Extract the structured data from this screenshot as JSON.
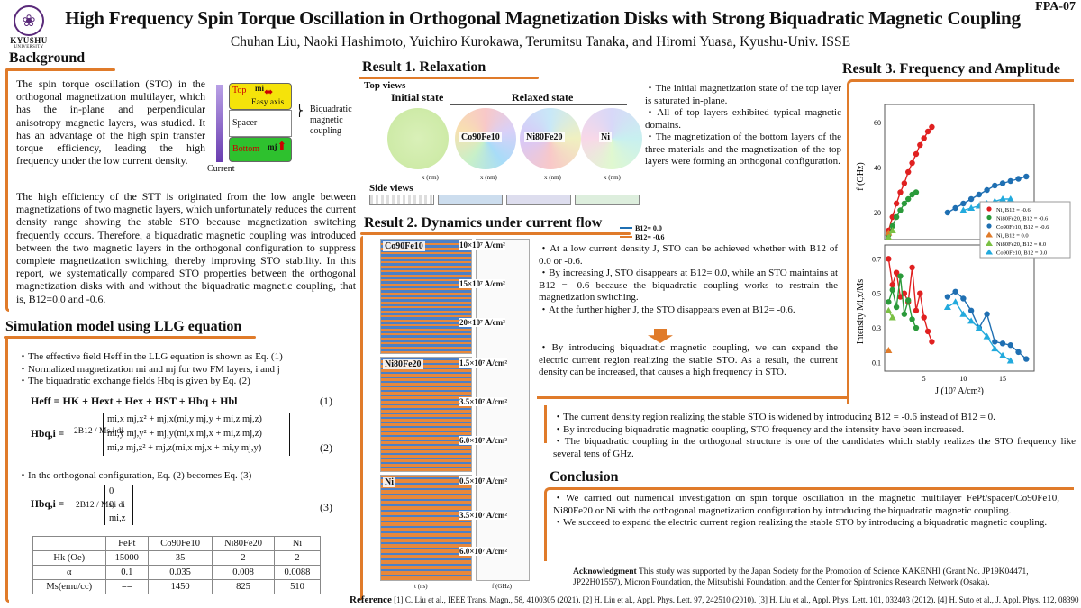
{
  "poster_id": "FPA-07",
  "title": "High Frequency Spin Torque Oscillation in Orthogonal Magnetization Disks with Strong Biquadratic Magnetic Coupling",
  "authors": "Chuhan Liu, Naoki Hashimoto, Yuichiro Kurokawa, Terumitsu Tanaka, and Hiromi Yuasa, Kyushu-Univ. ISSE",
  "logo": {
    "name": "KYUSHU",
    "sub": "UNIVERSITY"
  },
  "background": {
    "heading": "Background",
    "para1": "The spin torque oscillation (STO) in the orthogonal magnetization multilayer, which has the in-plane and perpendicular anisotropy magnetic layers, was studied. It has an advantage of the high spin transfer torque efficiency, leading the high frequency under the low current density.",
    "para2": "The high efficiency of the STT is originated from the low angle between magnetizations of two magnetic layers, which unfortunately reduces the current density range showing the stable STO because magnetization switching frequently occurs. Therefore, a biquadratic magnetic coupling was introduced between the two magnetic layers in the orthogonal configuration to suppress complete magnetization switching, thereby improving STO stability. In this report, we systematically compared STO properties between the orthogonal magnetization disks with and without the biquadratic magnetic coupling, that is, B12=0.0 and -0.6.",
    "diagram": {
      "top": "Top",
      "mi": "mi",
      "easy_axis": "Easy axis",
      "spacer": "Spacer",
      "bottom": "Bottom",
      "mj": "mj",
      "current": "Current",
      "coupling": "Biquadratic magnetic coupling"
    }
  },
  "simulation": {
    "heading": "Simulation model using LLG equation",
    "bullets": [
      "The effective field Heff in the LLG equation is shown as Eq. (1)",
      "Normalized magnetization mi and mj for two FM layers, i and j",
      "The biquadratic exchange fields Hbq is given by Eq. (2)"
    ],
    "eq1": "Heff = HK + Hext + Hex + HST + Hbq + Hbl",
    "eq1_num": "(1)",
    "eq2_lhs": "Hbq,i =",
    "eq2_rows": [
      "mi,x mj,x² + mj,x(mi,y mj,y + mi,z mj,z)",
      "mi,y mj,y² + mj,y(mi,x mj,x + mi,z mj,z)",
      "mi,z mj,z² + mj,z(mi,x mj,x + mi,y mj,y)"
    ],
    "eq2_coef": "2B12 / Ms,i di",
    "eq2_num": "(2)",
    "orth_note": "In the orthogonal configuration, Eq. (2) becomes Eq. (3)",
    "eq3_lhs": "Hbq,i =",
    "eq3_rows": [
      "0",
      "0",
      "mi,z"
    ],
    "eq3_num": "(3)",
    "table": {
      "headers": [
        "",
        "FePt",
        "Co90Fe10",
        "Ni80Fe20",
        "Ni"
      ],
      "rows": [
        [
          "Hk (Oe)",
          "15000",
          "35",
          "2",
          "2"
        ],
        [
          "α",
          "0.1",
          "0.035",
          "0.008",
          "0.0088"
        ],
        [
          "Ms(emu/cc)",
          "==",
          "1450",
          "825",
          "510"
        ]
      ]
    }
  },
  "result1": {
    "heading": "Result 1. Relaxation",
    "top_views": "Top views",
    "initial_state": "Initial state",
    "relaxed_state": "Relaxed state",
    "side_views": "Side views",
    "materials": [
      "Co90Fe10",
      "Ni80Fe20",
      "Ni"
    ],
    "axis_label": "x (nm)",
    "bullets": [
      "The initial magnetization state of the top layer is saturated in-plane.",
      "All of top layers exhibited typical magnetic domains.",
      "The magnetization of the bottom layers of the three materials and the magnetization of the top layers were forming an orthogonal configuration."
    ]
  },
  "result2": {
    "heading": "Result 2. Dynamics under current flow",
    "legend": [
      "B12= 0.0",
      "B12= -0.6"
    ],
    "groups": [
      {
        "material": "Co90Fe10",
        "currents": [
          "10×10⁷ A/cm²",
          "15×10⁷ A/cm²",
          "20×10⁷ A/cm²"
        ]
      },
      {
        "material": "Ni80Fe20",
        "currents": [
          "1.5×10⁷ A/cm²",
          "3.5×10⁷ A/cm²",
          "6.0×10⁷ A/cm²"
        ]
      },
      {
        "material": "Ni",
        "currents": [
          "0.5×10⁷ A/cm²",
          "3.5×10⁷ A/cm²",
          "6.0×10⁷ A/cm²"
        ]
      }
    ],
    "x_label_time": "t (ns)",
    "x_label_freq": "f (GHz)",
    "bullets": [
      "At a low current density J, STO can be achieved whether with B12 of 0.0 or -0.6.",
      "By increasing J, STO disappears at B12= 0.0, while an STO maintains at B12 = -0.6 because the biquadratic coupling works to restrain the magnetization switching.",
      "At the further higher J, the STO disappears even at B12= -0.6."
    ],
    "summary": "By introducing biquadratic magnetic coupling, we can expand the electric current region realizing the stable STO. As a result, the current density can be increased, that causes a high frequency in STO."
  },
  "result3": {
    "heading": "Result 3. Frequency and Amplitude",
    "bullets": [
      "The current density region realizing the stable STO is widened by introducing B12 = -0.6 instead of B12 = 0.",
      "By introducing biquadratic magnetic coupling, STO frequency and the intensity have been increased.",
      "The biquadratic coupling in the orthogonal structure is one of the candidates which stably realizes the STO frequency like several tens of GHz."
    ]
  },
  "conclusion": {
    "heading": "Conclusion",
    "bullets": [
      "We carried out numerical investigation on spin torque oscillation in the magnetic multilayer FePt/spacer/Co90Fe10, Ni80Fe20 or Ni with the orthogonal magnetization configuration by introducing the biquadratic magnetic coupling.",
      "We succeed to expand the electric current region realizing the stable STO by introducing a biquadratic magnetic coupling."
    ]
  },
  "acknowledgment": {
    "label": "Acknowledgment",
    "text": "This study was supported by the Japan Society for the Promotion of Science KAKENHI (Grant No. JP19K04471, JP22H01557), Micron Foundation, the Mitsubishi Foundation, and the Center for Spintronics Research Network (Osaka)."
  },
  "reference": {
    "label": "Reference",
    "text": "[1] C. Liu et al., IEEE Trans. Magn., 58, 4100305 (2021). [2] H. Liu et al., Appl. Phys. Lett. 97, 242510 (2010). [3] H. Liu et al., Appl. Phys. Lett. 101, 032403 (2012). [4] H. Suto et al., J. Appl. Phys. 112, 083907 (2012)."
  },
  "chart_data": {
    "type": "scatter",
    "panels": [
      {
        "ylabel": "f (GHz)",
        "yticks": [
          20,
          40,
          60
        ],
        "ylim": [
          8,
          68
        ],
        "series": [
          {
            "name": "Ni",
            "B12": "B12 = -0.6",
            "color": "#e02020",
            "marker": "circle",
            "x": [
              0.5,
              1.0,
              1.5,
              2.0,
              2.5,
              3.0,
              3.5,
              4.0,
              4.5,
              5.0,
              5.5,
              6.0
            ],
            "y": [
              12,
              18,
              24,
              29,
              33,
              38,
              42,
              46,
              50,
              53,
              56,
              58
            ]
          },
          {
            "name": "Ni80Fe20",
            "B12": "B12 = -0.6",
            "color": "#2a9a3a",
            "marker": "circle",
            "x": [
              0.5,
              1.0,
              1.5,
              2.0,
              2.5,
              3.0,
              3.5,
              4.0
            ],
            "y": [
              10,
              14,
              18,
              21,
              24,
              26,
              28,
              29
            ]
          },
          {
            "name": "Co90Fe10",
            "B12": "B12 = -0.6",
            "color": "#1f6fb2",
            "marker": "circle",
            "x": [
              8,
              9,
              10,
              11,
              12,
              13,
              14,
              15,
              16,
              17,
              18
            ],
            "y": [
              20,
              22,
              24,
              26,
              28,
              30,
              32,
              33,
              34,
              35,
              36
            ]
          },
          {
            "name": "Ni",
            "B12": "B12 = 0.0",
            "color": "#e07b2a",
            "marker": "triangle",
            "x": [
              0.5
            ],
            "y": [
              11
            ]
          },
          {
            "name": "Ni80Fe20",
            "B12": "B12 = 0.0",
            "color": "#7ac043",
            "marker": "triangle",
            "x": [
              0.5,
              1.0
            ],
            "y": [
              9,
              12
            ]
          },
          {
            "name": "Co90Fe10",
            "B12": "B12 = 0.0",
            "color": "#22aadd",
            "marker": "triangle",
            "x": [
              10,
              11,
              12,
              13,
              14,
              15,
              16
            ],
            "y": [
              21,
              22,
              23,
              24,
              25,
              26,
              26
            ]
          }
        ]
      },
      {
        "ylabel": "Intensity Mi,x/Ms",
        "xlabel": "J (10⁷ A/cm²)",
        "xticks": [
          5,
          10,
          15
        ],
        "yticks": [
          0.1,
          0.3,
          0.5,
          0.7
        ],
        "ylim": [
          0.05,
          0.78
        ],
        "xlim": [
          0,
          19
        ],
        "series": [
          {
            "name": "Ni",
            "B12": "B12 = -0.6",
            "color": "#e02020",
            "marker": "circle",
            "x": [
              0.5,
              1.0,
              1.5,
              2.0,
              2.5,
              3.0,
              3.5,
              4.0,
              4.5,
              5.0,
              5.5,
              6.0
            ],
            "y": [
              0.7,
              0.55,
              0.62,
              0.48,
              0.5,
              0.45,
              0.65,
              0.4,
              0.5,
              0.36,
              0.28,
              0.22
            ]
          },
          {
            "name": "Ni80Fe20",
            "B12": "B12 = -0.6",
            "color": "#2a9a3a",
            "marker": "circle",
            "x": [
              0.5,
              1.0,
              1.5,
              2.0,
              2.5,
              3.0,
              3.5,
              4.0
            ],
            "y": [
              0.45,
              0.52,
              0.42,
              0.6,
              0.38,
              0.46,
              0.35,
              0.3
            ]
          },
          {
            "name": "Co90Fe10",
            "B12": "B12 = -0.6",
            "color": "#1f6fb2",
            "marker": "circle",
            "x": [
              8,
              9,
              10,
              11,
              12,
              13,
              14,
              15,
              16,
              17,
              18
            ],
            "y": [
              0.48,
              0.51,
              0.47,
              0.4,
              0.3,
              0.38,
              0.22,
              0.21,
              0.2,
              0.16,
              0.12
            ]
          },
          {
            "name": "Ni",
            "B12": "B12 = 0.0",
            "color": "#e07b2a",
            "marker": "triangle",
            "x": [
              0.5
            ],
            "y": [
              0.17
            ]
          },
          {
            "name": "Ni80Fe20",
            "B12": "B12 = 0.0",
            "color": "#7ac043",
            "marker": "triangle",
            "x": [
              0.5,
              1.0
            ],
            "y": [
              0.4,
              0.36
            ]
          },
          {
            "name": "Co90Fe10",
            "B12": "B12 = 0.0",
            "color": "#22aadd",
            "marker": "triangle",
            "x": [
              8,
              9,
              10,
              11,
              12,
              13,
              14,
              15,
              16
            ],
            "y": [
              0.42,
              0.45,
              0.38,
              0.34,
              0.3,
              0.25,
              0.18,
              0.14,
              0.11
            ]
          }
        ]
      }
    ]
  }
}
